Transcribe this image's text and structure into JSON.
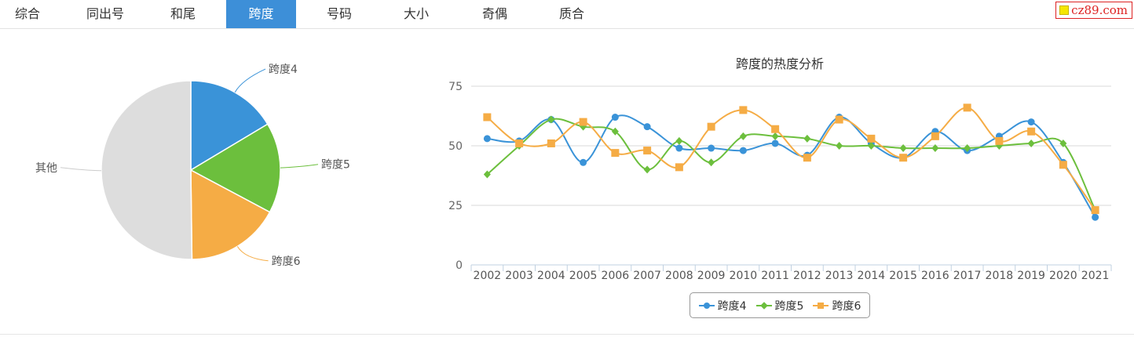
{
  "tabs": [
    {
      "label": "综合",
      "active": false
    },
    {
      "label": "同出号",
      "active": false
    },
    {
      "label": "和尾",
      "active": false
    },
    {
      "label": "跨度",
      "active": true
    },
    {
      "label": "号码",
      "active": false
    },
    {
      "label": "大小",
      "active": false
    },
    {
      "label": "奇偶",
      "active": false
    },
    {
      "label": "质合",
      "active": false
    }
  ],
  "watermark": "cz89.com",
  "colors": {
    "accent_tab": "#3d8fd8",
    "series_4": "#3a93d8",
    "series_5": "#6cbf3d",
    "series_6": "#f5ac45",
    "other": "#dddddd"
  },
  "chart_data": [
    {
      "type": "pie",
      "slices": [
        {
          "label": "跨度4",
          "value": 16.4
        },
        {
          "label": "跨度5",
          "value": 16.4
        },
        {
          "label": "跨度6",
          "value": 17.0
        },
        {
          "label": "其他",
          "value": 50.2
        }
      ]
    },
    {
      "type": "line",
      "title": "跨度的热度分析",
      "x": [
        "2002",
        "2003",
        "2004",
        "2005",
        "2006",
        "2007",
        "2008",
        "2009",
        "2010",
        "2011",
        "2012",
        "2013",
        "2014",
        "2015",
        "2016",
        "2017",
        "2018",
        "2019",
        "2020",
        "2021"
      ],
      "ylim": [
        0,
        75
      ],
      "yticks": [
        0,
        25,
        50,
        75
      ],
      "grid": true,
      "legend_position": "bottom-center",
      "series": [
        {
          "name": "跨度4",
          "marker": "circle",
          "values": [
            53,
            52,
            61,
            43,
            62,
            58,
            49,
            49,
            48,
            51,
            46,
            62,
            51,
            45,
            56,
            48,
            54,
            60,
            43,
            20
          ]
        },
        {
          "name": "跨度5",
          "marker": "diamond",
          "values": [
            38,
            50,
            61,
            58,
            56,
            40,
            52,
            43,
            54,
            54,
            53,
            50,
            50,
            49,
            49,
            49,
            50,
            51,
            51,
            23
          ]
        },
        {
          "name": "跨度6",
          "marker": "square",
          "values": [
            62,
            51,
            51,
            60,
            47,
            48,
            41,
            58,
            65,
            57,
            45,
            61,
            53,
            45,
            54,
            66,
            52,
            56,
            42,
            23
          ]
        }
      ]
    }
  ]
}
